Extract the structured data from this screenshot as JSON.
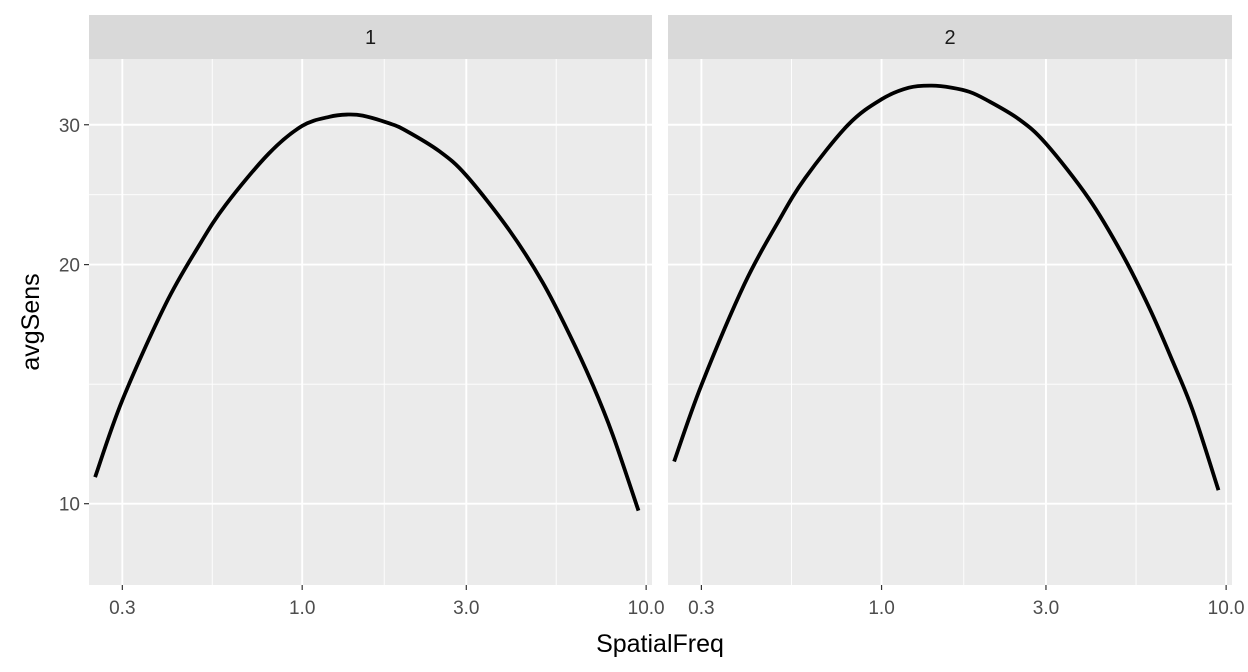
{
  "chart_data": {
    "type": "line",
    "xlabel": "SpatialFreq",
    "ylabel": "avgSens",
    "x_scale": "log10",
    "y_scale": "log10",
    "xlim": [
      0.24,
      10.4
    ],
    "ylim": [
      7.9,
      36.3
    ],
    "x_ticks": [
      0.3,
      1.0,
      3.0,
      10.0
    ],
    "x_tick_labels": [
      "0.3",
      "1.0",
      "3.0",
      "10.0"
    ],
    "y_ticks": [
      10,
      20,
      30
    ],
    "y_tick_labels": [
      "10",
      "20",
      "30"
    ],
    "grid": true,
    "panels": [
      {
        "strip_label": "1",
        "x": [
          0.25,
          0.3,
          0.4,
          0.5,
          0.6,
          0.8,
          1.0,
          1.2,
          1.35,
          1.5,
          1.8,
          2.0,
          2.5,
          3.0,
          4.0,
          5.0,
          6.0,
          7.0,
          8.0,
          9.5
        ],
        "y": [
          10.8,
          13.5,
          17.8,
          21.1,
          23.8,
          27.6,
          29.9,
          30.7,
          30.9,
          30.8,
          30.1,
          29.5,
          27.8,
          25.9,
          22.1,
          19.0,
          16.3,
          14.1,
          12.2,
          9.8
        ]
      },
      {
        "strip_label": "2",
        "x": [
          0.25,
          0.3,
          0.4,
          0.5,
          0.6,
          0.8,
          1.0,
          1.2,
          1.4,
          1.6,
          1.8,
          2.0,
          2.5,
          3.0,
          4.0,
          5.0,
          6.0,
          7.0,
          8.0,
          9.5
        ],
        "y": [
          11.3,
          14.1,
          18.9,
          22.6,
          25.7,
          30.0,
          32.3,
          33.4,
          33.6,
          33.4,
          33.0,
          32.3,
          30.5,
          28.4,
          24.2,
          20.6,
          17.6,
          15.1,
          13.1,
          10.4
        ]
      }
    ]
  }
}
